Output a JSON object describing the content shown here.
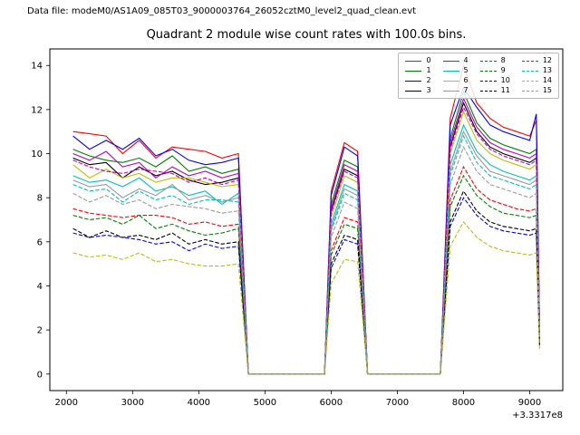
{
  "header": {
    "datafile_label": "Data file: modeM0/AS1A09_085T03_9000003764_26052cztM0_level2_quad_clean.evt"
  },
  "chart_data": {
    "type": "line",
    "title": "Quadrant 2 module wise count rates with 100.0s bins.",
    "xlabel": "",
    "ylabel": "",
    "x_offset_label": "+3.3317e8",
    "xlim": [
      1750,
      9500
    ],
    "ylim": [
      -0.75,
      14.75
    ],
    "x_ticks": [
      2000,
      3000,
      4000,
      5000,
      6000,
      7000,
      8000,
      9000
    ],
    "y_ticks": [
      0,
      2,
      4,
      6,
      8,
      10,
      12,
      14
    ],
    "grid": false,
    "legend_position": "upper right",
    "legend_columns": 4,
    "x": [
      2100,
      2350,
      2600,
      2850,
      3100,
      3350,
      3600,
      3850,
      4100,
      4350,
      4600,
      4750,
      5900,
      6000,
      6200,
      6400,
      6550,
      7650,
      7800,
      8000,
      8200,
      8400,
      8600,
      8800,
      9000,
      9100,
      9150
    ],
    "series": [
      {
        "label": "0",
        "color": "#ff0000",
        "dash": false,
        "values": [
          11.0,
          10.9,
          10.8,
          10.0,
          10.6,
          9.8,
          10.3,
          10.2,
          10.1,
          9.8,
          10.0,
          0,
          0,
          8.3,
          10.5,
          10.1,
          0,
          0,
          11.6,
          14.0,
          12.3,
          11.6,
          11.2,
          11.0,
          10.8,
          11.5,
          2.2
        ]
      },
      {
        "label": "1",
        "color": "#008000",
        "dash": false,
        "values": [
          10.2,
          9.9,
          9.7,
          9.6,
          9.8,
          9.4,
          9.9,
          9.2,
          9.4,
          9.1,
          9.3,
          0,
          0,
          7.7,
          9.7,
          9.4,
          0,
          0,
          10.7,
          12.8,
          11.4,
          10.7,
          10.4,
          10.2,
          10.0,
          10.2,
          2.0
        ]
      },
      {
        "label": "2",
        "color": "#0000ff",
        "dash": false,
        "values": [
          10.8,
          10.2,
          10.6,
          10.2,
          10.7,
          9.9,
          10.2,
          9.7,
          9.5,
          9.6,
          9.8,
          0,
          0,
          8.1,
          10.3,
          9.9,
          0,
          0,
          11.3,
          13.0,
          12.1,
          11.3,
          11.0,
          10.8,
          10.6,
          11.8,
          2.2
        ]
      },
      {
        "label": "3",
        "color": "#000000",
        "dash": false,
        "values": [
          9.8,
          9.5,
          9.6,
          8.9,
          9.4,
          9.0,
          9.2,
          8.8,
          8.6,
          8.7,
          8.9,
          0,
          0,
          7.4,
          9.3,
          9.0,
          0,
          0,
          10.3,
          12.3,
          11.0,
          10.3,
          10.0,
          9.8,
          9.6,
          9.8,
          2.0
        ]
      },
      {
        "label": "4",
        "color": "#bf00bf",
        "dash": false,
        "values": [
          10.0,
          9.7,
          10.1,
          9.4,
          9.6,
          8.9,
          9.4,
          9.0,
          9.2,
          8.9,
          9.1,
          0,
          0,
          7.5,
          9.5,
          9.2,
          0,
          0,
          10.5,
          12.5,
          11.2,
          10.5,
          10.2,
          10.0,
          9.8,
          10.0,
          2.0
        ]
      },
      {
        "label": "5",
        "color": "#00bfbf",
        "dash": false,
        "values": [
          9.0,
          8.7,
          8.8,
          8.5,
          8.9,
          8.3,
          8.5,
          8.1,
          8.3,
          7.7,
          8.2,
          0,
          0,
          6.8,
          8.6,
          8.3,
          0,
          0,
          9.5,
          11.3,
          10.1,
          9.5,
          9.2,
          9.0,
          8.8,
          9.0,
          1.8
        ]
      },
      {
        "label": "6",
        "color": "#bfbf00",
        "dash": false,
        "values": [
          9.5,
          8.9,
          9.3,
          8.9,
          9.1,
          8.7,
          8.9,
          8.9,
          8.7,
          8.5,
          8.6,
          0,
          0,
          7.1,
          9.0,
          8.7,
          0,
          0,
          10.0,
          11.9,
          10.6,
          10.0,
          9.7,
          9.5,
          9.3,
          9.5,
          1.9
        ]
      },
      {
        "label": "7",
        "color": "#9a9a9a",
        "dash": false,
        "values": [
          8.8,
          8.5,
          8.6,
          8.0,
          8.4,
          8.1,
          8.6,
          7.9,
          8.1,
          7.8,
          8.0,
          0,
          0,
          6.6,
          8.4,
          8.1,
          0,
          0,
          9.2,
          11.0,
          9.9,
          9.2,
          9.0,
          8.8,
          8.6,
          8.8,
          1.8
        ]
      },
      {
        "label": "8",
        "color": "#ff0000",
        "dash": true,
        "values": [
          7.5,
          7.3,
          7.2,
          7.1,
          7.2,
          7.2,
          7.1,
          6.8,
          6.9,
          6.7,
          6.8,
          0,
          0,
          5.6,
          7.1,
          6.9,
          0,
          0,
          7.9,
          9.4,
          8.4,
          7.9,
          7.7,
          7.5,
          7.4,
          7.5,
          1.5
        ]
      },
      {
        "label": "9",
        "color": "#008000",
        "dash": true,
        "values": [
          7.2,
          7.0,
          7.1,
          6.8,
          7.2,
          6.6,
          6.8,
          6.5,
          6.3,
          6.4,
          6.6,
          0,
          0,
          5.4,
          6.8,
          6.6,
          0,
          0,
          7.6,
          9.0,
          8.1,
          7.6,
          7.3,
          7.2,
          7.1,
          7.2,
          1.4
        ]
      },
      {
        "label": "10",
        "color": "#0000ff",
        "dash": true,
        "values": [
          6.4,
          6.2,
          6.3,
          6.2,
          6.1,
          5.9,
          6.0,
          5.6,
          5.9,
          5.7,
          5.8,
          0,
          0,
          4.8,
          6.1,
          5.9,
          0,
          0,
          6.7,
          8.0,
          7.2,
          6.7,
          6.5,
          6.4,
          6.3,
          6.4,
          1.3
        ]
      },
      {
        "label": "11",
        "color": "#000000",
        "dash": true,
        "values": [
          6.6,
          6.2,
          6.5,
          6.2,
          6.3,
          6.1,
          6.4,
          5.9,
          6.1,
          5.9,
          6.0,
          0,
          0,
          5.0,
          6.3,
          6.1,
          0,
          0,
          6.9,
          8.3,
          7.4,
          6.9,
          6.7,
          6.6,
          6.5,
          6.6,
          1.3
        ]
      },
      {
        "label": "12",
        "color": "#bf00bf",
        "dash": true,
        "values": [
          9.7,
          9.4,
          9.2,
          9.1,
          9.3,
          9.2,
          9.1,
          8.7,
          8.9,
          8.6,
          8.8,
          0,
          0,
          7.3,
          9.2,
          8.9,
          0,
          0,
          10.2,
          12.1,
          10.9,
          10.2,
          9.9,
          9.7,
          9.5,
          9.7,
          1.9
        ]
      },
      {
        "label": "13",
        "color": "#00bfbf",
        "dash": true,
        "values": [
          8.6,
          8.3,
          8.4,
          7.8,
          8.3,
          7.9,
          8.1,
          7.7,
          7.9,
          7.9,
          7.8,
          0,
          0,
          6.5,
          8.2,
          7.9,
          0,
          0,
          9.0,
          10.8,
          9.6,
          9.0,
          8.8,
          8.6,
          8.4,
          8.6,
          1.7
        ]
      },
      {
        "label": "14",
        "color": "#bfbf00",
        "dash": true,
        "values": [
          5.5,
          5.3,
          5.4,
          5.2,
          5.5,
          5.1,
          5.2,
          5.0,
          4.9,
          4.9,
          5.0,
          0,
          0,
          4.1,
          5.2,
          5.1,
          0,
          0,
          5.8,
          6.9,
          6.2,
          5.8,
          5.6,
          5.5,
          5.4,
          5.5,
          1.1
        ]
      },
      {
        "label": "15",
        "color": "#9a9a9a",
        "dash": true,
        "values": [
          8.2,
          7.8,
          8.1,
          7.7,
          7.9,
          7.5,
          7.7,
          7.6,
          7.5,
          7.3,
          7.4,
          0,
          0,
          6.2,
          7.8,
          7.5,
          0,
          0,
          8.6,
          10.3,
          9.2,
          8.6,
          8.4,
          8.2,
          8.0,
          8.2,
          1.6
        ]
      }
    ]
  }
}
